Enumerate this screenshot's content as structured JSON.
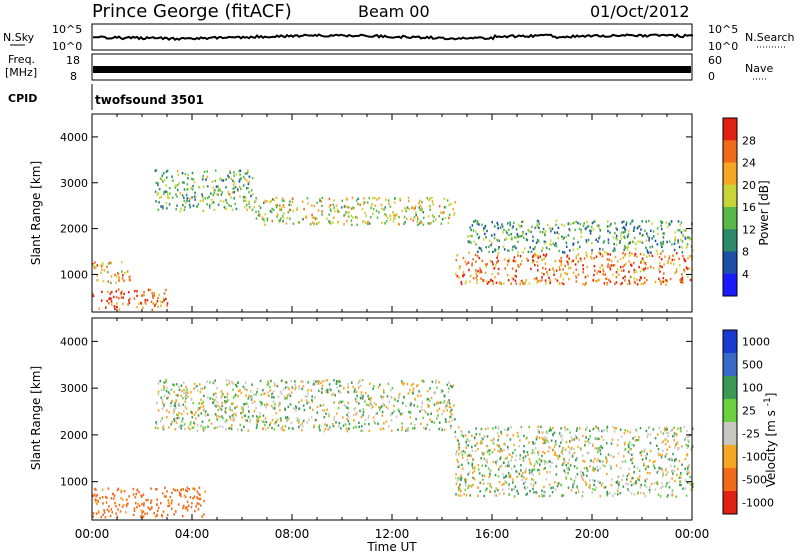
{
  "header": {
    "station": "Prince George (fitACF)",
    "beam": "Beam 00",
    "date": "01/Oct/2012"
  },
  "top_strip": {
    "left_label": "N.Sky",
    "left_ticks": [
      "10^5",
      "10^0"
    ],
    "right_label": "N.Search",
    "right_ticks": [
      "10^5",
      "10^0"
    ]
  },
  "freq_strip": {
    "left_label_1": "Freq.",
    "left_label_2": "[MHz]",
    "left_ticks": [
      "18",
      "8"
    ],
    "right_label": "Nave",
    "right_ticks": [
      "60",
      "0"
    ]
  },
  "cpid_strip": {
    "label": "CPID",
    "value": "twofsound 3501"
  },
  "chart_data": [
    {
      "type": "heatmap",
      "title": "",
      "quantity": "Power",
      "xlabel": "Time UT",
      "ylabel": "Slant Range [km]",
      "x_tick_labels": [
        "00:00",
        "04:00",
        "08:00",
        "12:00",
        "16:00",
        "20:00",
        "00:00"
      ],
      "y_ticks": [
        1000,
        2000,
        3000,
        4000
      ],
      "ylim": [
        180,
        4500
      ],
      "xlim_hours": [
        0,
        24
      ],
      "colorbar": {
        "label": "Power [dB]",
        "ticks": [
          "4",
          "8",
          "12",
          "16",
          "20",
          "24",
          "28"
        ],
        "colors": [
          "#1a1aff",
          "#1e4fa6",
          "#2a8a6a",
          "#5ab84a",
          "#c8d43a",
          "#f5a623",
          "#f26a1b",
          "#e02010"
        ]
      },
      "bands": [
        {
          "from_h": 0.0,
          "to_h": 3.0,
          "range_km": [
            250,
            700
          ],
          "value_db": 26
        },
        {
          "from_h": 0.0,
          "to_h": 1.5,
          "range_km": [
            800,
            1300
          ],
          "value_db": 22
        },
        {
          "from_h": 2.5,
          "to_h": 6.5,
          "range_km": [
            2400,
            3300
          ],
          "value_db": 14
        },
        {
          "from_h": 6.5,
          "to_h": 14.5,
          "range_km": [
            2100,
            2700
          ],
          "value_db": 18
        },
        {
          "from_h": 14.5,
          "to_h": 24.0,
          "range_km": [
            800,
            1500
          ],
          "value_db": 25
        },
        {
          "from_h": 15.0,
          "to_h": 24.0,
          "range_km": [
            1500,
            2200
          ],
          "value_db": 12
        }
      ]
    },
    {
      "type": "heatmap",
      "title": "",
      "quantity": "Velocity",
      "xlabel": "Time UT",
      "ylabel": "Slant Range [km]",
      "x_tick_labels": [
        "00:00",
        "04:00",
        "08:00",
        "12:00",
        "16:00",
        "20:00",
        "00:00"
      ],
      "y_ticks": [
        1000,
        2000,
        3000,
        4000
      ],
      "ylim": [
        180,
        4500
      ],
      "xlim_hours": [
        0,
        24
      ],
      "colorbar": {
        "label": "Velocity [m s^-1]",
        "ticks": [
          "1000",
          "500",
          "100",
          "25",
          "-25",
          "-100",
          "-500",
          "-1000"
        ],
        "colors": [
          "#1a3ad0",
          "#3a6ac8",
          "#3a9a55",
          "#6ad040",
          "#c8c8c0",
          "#f5a623",
          "#f26a1b",
          "#e02010"
        ]
      },
      "bands": [
        {
          "from_h": 0.0,
          "to_h": 4.5,
          "range_km": [
            250,
            900
          ],
          "value_ms": -150
        },
        {
          "from_h": 2.5,
          "to_h": 14.5,
          "range_km": [
            2100,
            3200
          ],
          "value_ms": 0
        },
        {
          "from_h": 14.5,
          "to_h": 24.0,
          "range_km": [
            700,
            2200
          ],
          "value_ms": 0
        }
      ]
    }
  ]
}
